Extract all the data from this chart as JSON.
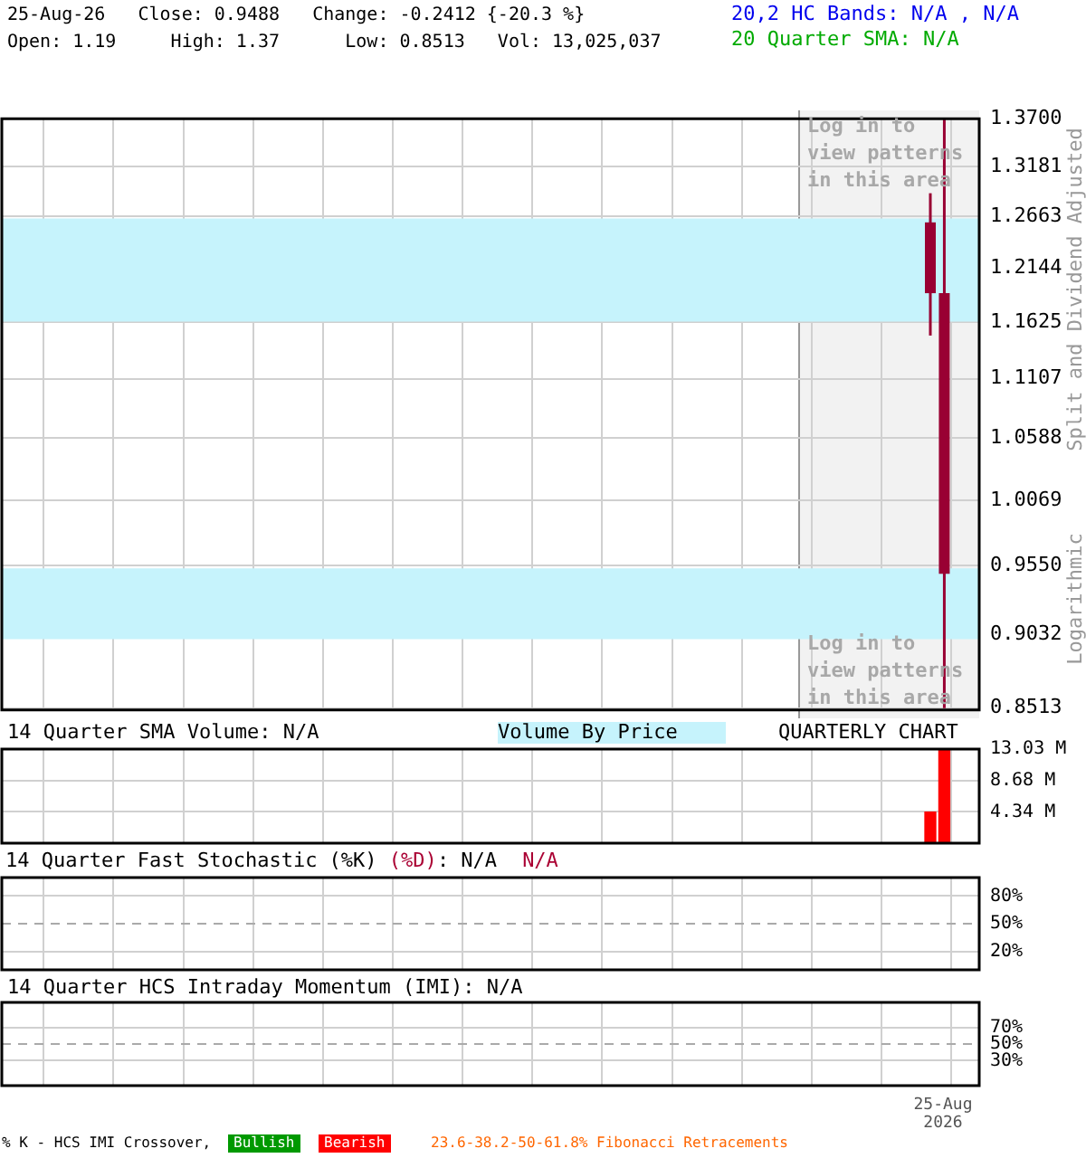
{
  "chart_data": [
    {
      "type": "candlestick",
      "title": "25-Aug-26   Close: 0.9488   Change: -0.2412 {-20.3 %}",
      "subtitle": "Open: 1.19     High: 1.37      Low: 0.8513   Vol: 13,025,037",
      "ylabel": "Split and Dividend Adjusted",
      "annotations": [
        "20,2 HC Bands: N/A , N/A",
        "20 Quarter SMA: N/A",
        "Logarithmic",
        "Log in to view patterns in this area",
        "Log in to view patterns in this area"
      ],
      "categories": [
        null,
        null,
        null,
        null,
        null,
        null,
        null,
        null,
        null,
        null,
        null,
        null,
        null,
        null,
        null,
        null,
        null,
        null,
        null,
        null,
        null,
        null,
        null,
        null,
        null,
        null,
        null,
        null,
        null,
        null,
        null,
        null,
        null,
        null,
        null,
        null,
        null,
        null,
        null,
        null,
        null,
        null,
        null,
        null,
        null,
        null,
        null,
        null,
        null,
        null,
        null,
        null,
        null,
        null,
        null,
        null,
        null,
        null,
        null,
        null,
        null,
        null,
        null,
        null,
        null,
        null,
        null,
        null,
        null,
        null
      ],
      "ohlc": [
        null,
        null,
        null,
        null,
        null,
        null,
        null,
        null,
        null,
        null,
        null,
        null,
        null,
        null,
        null,
        null,
        null,
        null,
        null,
        null,
        null,
        null,
        null,
        null,
        null,
        null,
        null,
        null,
        null,
        null,
        null,
        null,
        null,
        null,
        null,
        null,
        null,
        null,
        null,
        null,
        null,
        null,
        null,
        null,
        null,
        null,
        null,
        null,
        null,
        null,
        null,
        null,
        null,
        null,
        null,
        null,
        null,
        null,
        null,
        null,
        null,
        null,
        null,
        null,
        null,
        null,
        [
          1.26,
          1.29,
          1.15,
          1.19
        ],
        [
          1.19,
          1.37,
          0.8513,
          0.9488
        ],
        null,
        null
      ],
      "color": "#990033",
      "ylim": [
        0.8513,
        1.37
      ],
      "yticks": [
        0.8513,
        0.9032,
        {
          "value": 0.955,
          "label": "0.9550"
        },
        1.0069,
        1.0588,
        1.1107,
        1.1625,
        1.2144,
        1.2663,
        1.3181,
        {
          "value": 1.37,
          "label": "1.3700"
        }
      ],
      "log": true,
      "grid": true,
      "tick_labels": "y",
      "bands": [
        {
          "axis": "y",
          "from": 0.9,
          "to": 0.953,
          "color": "#c6f3fc"
        },
        {
          "axis": "y",
          "from": 1.163,
          "to": 1.264,
          "color": "#c6f3fc"
        }
      ]
    },
    {
      "type": "bar",
      "title": "14 Quarter SMA Volume: N/A",
      "annotations": [
        "Volume By Price",
        "QUARTERLY CHART"
      ],
      "categories": [
        null,
        null,
        null,
        null,
        null,
        null,
        null,
        null,
        null,
        null,
        null,
        null,
        null,
        null,
        null,
        null,
        null,
        null,
        null,
        null,
        null,
        null,
        null,
        null,
        null,
        null,
        null,
        null,
        null,
        null,
        null,
        null,
        null,
        null,
        null,
        null,
        null,
        null,
        null,
        null,
        null,
        null,
        null,
        null,
        null,
        null,
        null,
        null,
        null,
        null,
        null,
        null,
        null,
        null,
        null,
        null,
        null,
        null,
        null,
        null,
        null,
        null,
        null,
        null,
        null,
        null,
        null,
        null,
        null,
        null
      ],
      "values": [
        null,
        null,
        null,
        null,
        null,
        null,
        null,
        null,
        null,
        null,
        null,
        null,
        null,
        null,
        null,
        null,
        null,
        null,
        null,
        null,
        null,
        null,
        null,
        null,
        null,
        null,
        null,
        null,
        null,
        null,
        null,
        null,
        null,
        null,
        null,
        null,
        null,
        null,
        null,
        null,
        null,
        null,
        null,
        null,
        null,
        null,
        null,
        null,
        null,
        null,
        null,
        null,
        null,
        null,
        null,
        null,
        null,
        null,
        null,
        null,
        null,
        null,
        null,
        null,
        null,
        null,
        4.3,
        13.03,
        null,
        null
      ],
      "color": "#ff0000",
      "ylim": [
        0,
        13.03
      ],
      "yticks": [
        {
          "value": 4.34,
          "label": "4.34 M"
        },
        {
          "value": 8.68,
          "label": "8.68 M"
        },
        {
          "value": 13.03,
          "label": "13.03 M"
        }
      ],
      "grid": true,
      "tick_labels": "y"
    },
    {
      "type": "line",
      "title": "14 Quarter Fast Stochastic (%K)",
      "annotations": [
        "(%D)",
        ": N/A",
        "N/A"
      ],
      "categories": [
        null,
        null,
        null,
        null,
        null,
        null,
        null,
        null,
        null,
        null,
        null,
        null,
        null,
        null,
        null,
        null,
        null,
        null,
        null,
        null,
        null,
        null,
        null,
        null,
        null,
        null,
        null,
        null,
        null,
        null,
        null,
        null,
        null,
        null,
        null,
        null,
        null,
        null,
        null,
        null,
        null,
        null,
        null,
        null,
        null,
        null,
        null,
        null,
        null,
        null,
        null,
        null,
        null,
        null,
        null,
        null,
        null,
        null,
        null,
        null,
        null,
        null,
        null,
        null,
        null,
        null,
        null,
        null,
        null,
        null
      ],
      "values": [
        null,
        null,
        null,
        null,
        null,
        null,
        null,
        null,
        null,
        null,
        null,
        null,
        null,
        null,
        null,
        null,
        null,
        null,
        null,
        null,
        null,
        null,
        null,
        null,
        null,
        null,
        null,
        null,
        null,
        null,
        null,
        null,
        null,
        null,
        null,
        null,
        null,
        null,
        null,
        null,
        null,
        null,
        null,
        null,
        null,
        null,
        null,
        null,
        null,
        null,
        null,
        null,
        null,
        null,
        null,
        null,
        null,
        null,
        null,
        null,
        null,
        null,
        null,
        null,
        null,
        null,
        null,
        null,
        null,
        null
      ],
      "ylim": [
        0,
        100
      ],
      "yticks": [
        {
          "value": 20,
          "label": "20%"
        },
        {
          "value": 50,
          "label": "50%"
        },
        {
          "value": 80,
          "label": "80%"
        }
      ],
      "ref_lines": [
        {
          "axis": "y",
          "value": 50,
          "line_style": "dashed"
        }
      ],
      "grid": true,
      "tick_labels": "y"
    },
    {
      "type": "line",
      "title": "14 Quarter HCS Intraday Momentum (IMI): N/A",
      "annotations": [
        "% K - HCS IMI Crossover,",
        "Bullish",
        "Bearish",
        "23.6-38.2-50-61.8% Fibonacci Retracements",
        "25-Aug 2026"
      ],
      "categories": [
        null,
        null,
        null,
        null,
        null,
        null,
        null,
        null,
        null,
        null,
        null,
        null,
        null,
        null,
        null,
        null,
        null,
        null,
        null,
        null,
        null,
        null,
        null,
        null,
        null,
        null,
        null,
        null,
        null,
        null,
        null,
        null,
        null,
        null,
        null,
        null,
        null,
        null,
        null,
        null,
        null,
        null,
        null,
        null,
        null,
        null,
        null,
        null,
        null,
        null,
        null,
        null,
        null,
        null,
        null,
        null,
        null,
        null,
        null,
        null,
        null,
        null,
        null,
        null,
        null,
        null,
        null,
        null,
        null,
        null
      ],
      "values": [
        null,
        null,
        null,
        null,
        null,
        null,
        null,
        null,
        null,
        null,
        null,
        null,
        null,
        null,
        null,
        null,
        null,
        null,
        null,
        null,
        null,
        null,
        null,
        null,
        null,
        null,
        null,
        null,
        null,
        null,
        null,
        null,
        null,
        null,
        null,
        null,
        null,
        null,
        null,
        null,
        null,
        null,
        null,
        null,
        null,
        null,
        null,
        null,
        null,
        null,
        null,
        null,
        null,
        null,
        null,
        null,
        null,
        null,
        null,
        null,
        null,
        null,
        null,
        null,
        null,
        null,
        null,
        null,
        null,
        null
      ],
      "ylim": [
        0,
        100
      ],
      "yticks": [
        {
          "value": 30,
          "label": "30%"
        },
        {
          "value": 50,
          "label": "50%"
        },
        {
          "value": 70,
          "label": "70%"
        }
      ],
      "ref_lines": [
        {
          "axis": "y",
          "value": 50,
          "line_style": "dashed"
        }
      ],
      "grid": true,
      "tick_labels": "y"
    }
  ]
}
